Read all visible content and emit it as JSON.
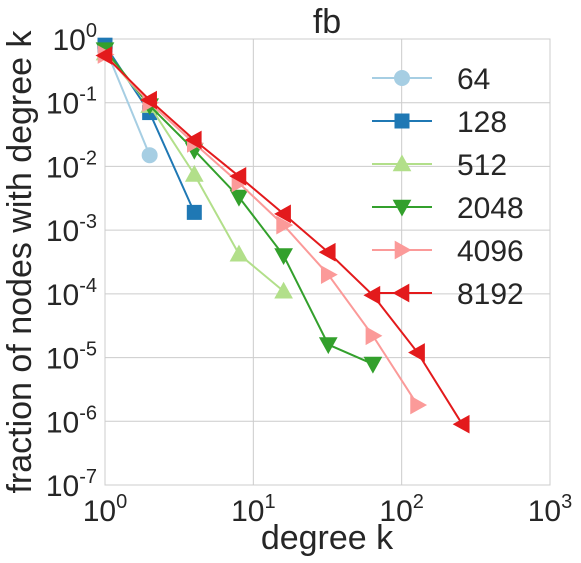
{
  "chart_data": {
    "type": "line",
    "title": "fb",
    "xlabel": "degree k",
    "ylabel": "fraction of nodes with degree k",
    "xscale": "log",
    "yscale": "log",
    "xlim": [
      1,
      1000
    ],
    "ylim": [
      1e-07,
      1
    ],
    "x_ticks": [
      {
        "value": 1,
        "base": "10",
        "exp": "0"
      },
      {
        "value": 10,
        "base": "10",
        "exp": "1"
      },
      {
        "value": 100,
        "base": "10",
        "exp": "2"
      },
      {
        "value": 1000,
        "base": "10",
        "exp": "3"
      }
    ],
    "y_ticks": [
      {
        "value": 1,
        "base": "10",
        "exp": "0"
      },
      {
        "value": 0.1,
        "base": "10",
        "exp": "-1"
      },
      {
        "value": 0.01,
        "base": "10",
        "exp": "-2"
      },
      {
        "value": 0.001,
        "base": "10",
        "exp": "-3"
      },
      {
        "value": 0.0001,
        "base": "10",
        "exp": "-4"
      },
      {
        "value": 1e-05,
        "base": "10",
        "exp": "-5"
      },
      {
        "value": 1e-06,
        "base": "10",
        "exp": "-6"
      },
      {
        "value": 1e-07,
        "base": "10",
        "exp": "-7"
      }
    ],
    "grid": true,
    "legend_position": "top-right",
    "series": [
      {
        "name": "64",
        "color": "#a6cee3",
        "marker": "circle",
        "x": [
          1,
          2
        ],
        "y": [
          0.75,
          0.015
        ]
      },
      {
        "name": "128",
        "color": "#1f78b4",
        "marker": "square",
        "x": [
          1,
          2,
          4
        ],
        "y": [
          0.8,
          0.07,
          0.0019
        ]
      },
      {
        "name": "512",
        "color": "#b2df8a",
        "marker": "triangle-up",
        "x": [
          1,
          2,
          4,
          8,
          16
        ],
        "y": [
          0.6,
          0.09,
          0.0075,
          0.00042,
          0.00011
        ]
      },
      {
        "name": "2048",
        "color": "#33a02c",
        "marker": "triangle-down",
        "x": [
          1,
          2,
          4,
          8,
          16,
          32,
          64
        ],
        "y": [
          0.68,
          0.09,
          0.018,
          0.0033,
          0.0004,
          1.6e-05,
          7.9e-06
        ]
      },
      {
        "name": "4096",
        "color": "#fb9a99",
        "marker": "triangle-right",
        "x": [
          1,
          2,
          4,
          8,
          16,
          32,
          64,
          128
        ],
        "y": [
          0.57,
          0.1,
          0.023,
          0.0055,
          0.0012,
          0.0002,
          2.2e-05,
          1.8e-06
        ]
      },
      {
        "name": "8192",
        "color": "#e31a1c",
        "marker": "triangle-left",
        "x": [
          1,
          2,
          4,
          8,
          16,
          32,
          64,
          128,
          256
        ],
        "y": [
          0.55,
          0.11,
          0.026,
          0.007,
          0.0018,
          0.00045,
          9.5e-05,
          1.2e-05,
          9e-07
        ]
      }
    ]
  }
}
